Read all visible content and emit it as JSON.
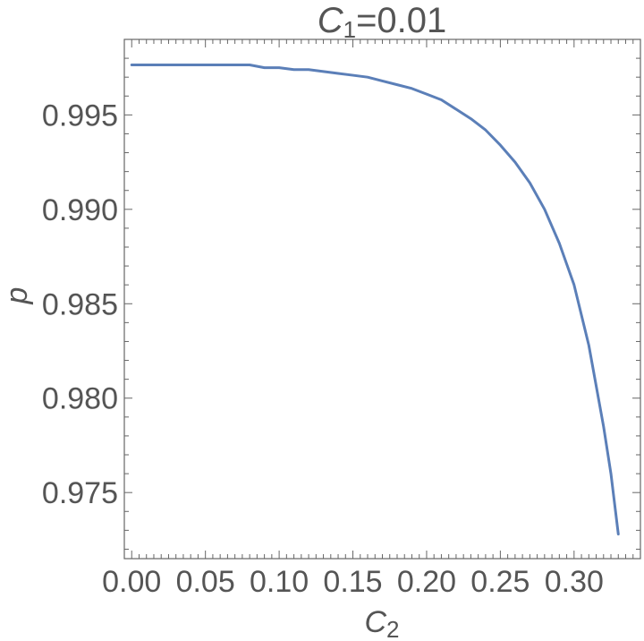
{
  "chart_data": {
    "type": "line",
    "title": "C1=0.01",
    "title_main": "C",
    "title_sub": "1",
    "title_rest": "=0.01",
    "xlabel_main": "C",
    "xlabel_sub": "2",
    "ylabel": "p",
    "xlim": [
      -0.005,
      0.345
    ],
    "ylim": [
      0.9715,
      0.999
    ],
    "xticks": [
      0.0,
      0.05,
      0.1,
      0.15,
      0.2,
      0.25,
      0.3
    ],
    "xtick_labels": [
      "0.00",
      "0.05",
      "0.10",
      "0.15",
      "0.20",
      "0.25",
      "0.30"
    ],
    "yticks": [
      0.975,
      0.98,
      0.985,
      0.99,
      0.995
    ],
    "ytick_labels": [
      "0.975",
      "0.980",
      "0.985",
      "0.990",
      "0.995"
    ],
    "grid": false,
    "series": [
      {
        "color": "#5b7fb8",
        "x": [
          0.0,
          0.02,
          0.04,
          0.06,
          0.08,
          0.09,
          0.1,
          0.11,
          0.12,
          0.13,
          0.14,
          0.15,
          0.16,
          0.17,
          0.18,
          0.19,
          0.2,
          0.21,
          0.22,
          0.23,
          0.24,
          0.25,
          0.26,
          0.27,
          0.28,
          0.29,
          0.3,
          0.31,
          0.32,
          0.325,
          0.33
        ],
        "y": [
          0.99765,
          0.99765,
          0.99765,
          0.99765,
          0.99765,
          0.9975,
          0.9975,
          0.9974,
          0.9974,
          0.9973,
          0.9972,
          0.9971,
          0.997,
          0.9968,
          0.9966,
          0.9964,
          0.9961,
          0.9958,
          0.9953,
          0.9948,
          0.9942,
          0.9934,
          0.9925,
          0.9914,
          0.99,
          0.9882,
          0.986,
          0.9828,
          0.9785,
          0.976,
          0.9728
        ]
      }
    ]
  }
}
